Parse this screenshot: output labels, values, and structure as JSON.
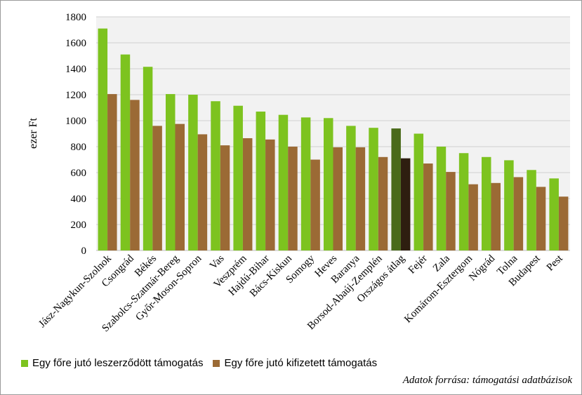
{
  "chart_data": {
    "type": "bar",
    "ylabel": "ezer Ft",
    "ylim": [
      0,
      1800
    ],
    "yticks": [
      0,
      200,
      400,
      600,
      800,
      1000,
      1200,
      1400,
      1600,
      1800
    ],
    "grid": true,
    "legend_position": "bottom-left",
    "categories": [
      "Jász-Nagykun-Szolnok",
      "Csongrád",
      "Békés",
      "Szabolcs-Szatmár-Bereg",
      "Győr-Moson-Sopron",
      "Vas",
      "Veszprém",
      "Hajdú-Bihar",
      "Bács-Kiskun",
      "Somogy",
      "Heves",
      "Baranya",
      "Borsod-Abaúj-Zemplén",
      "Országos átlag",
      "Fejér",
      "Zala",
      "Komárom-Esztergom",
      "Nógrád",
      "Tolna",
      "Budapest",
      "Pest"
    ],
    "highlight_category": "Országos átlag",
    "series": [
      {
        "name": "Egy főre jutó leszerződött támogatás",
        "color": "#7dc31f",
        "highlight_color": "#4a6a1a",
        "values": [
          1710,
          1510,
          1415,
          1205,
          1200,
          1150,
          1115,
          1070,
          1045,
          1025,
          1020,
          960,
          945,
          940,
          900,
          800,
          750,
          720,
          695,
          620,
          555
        ]
      },
      {
        "name": "Egy főre jutó kifizetett támogatás",
        "color": "#9b6a35",
        "highlight_color": "#2e1e10",
        "values": [
          1205,
          1160,
          960,
          975,
          895,
          810,
          865,
          855,
          800,
          700,
          795,
          795,
          720,
          710,
          670,
          605,
          510,
          520,
          565,
          490,
          415
        ]
      }
    ]
  },
  "source_note": "Adatok forrása: támogatási adatbázisok"
}
